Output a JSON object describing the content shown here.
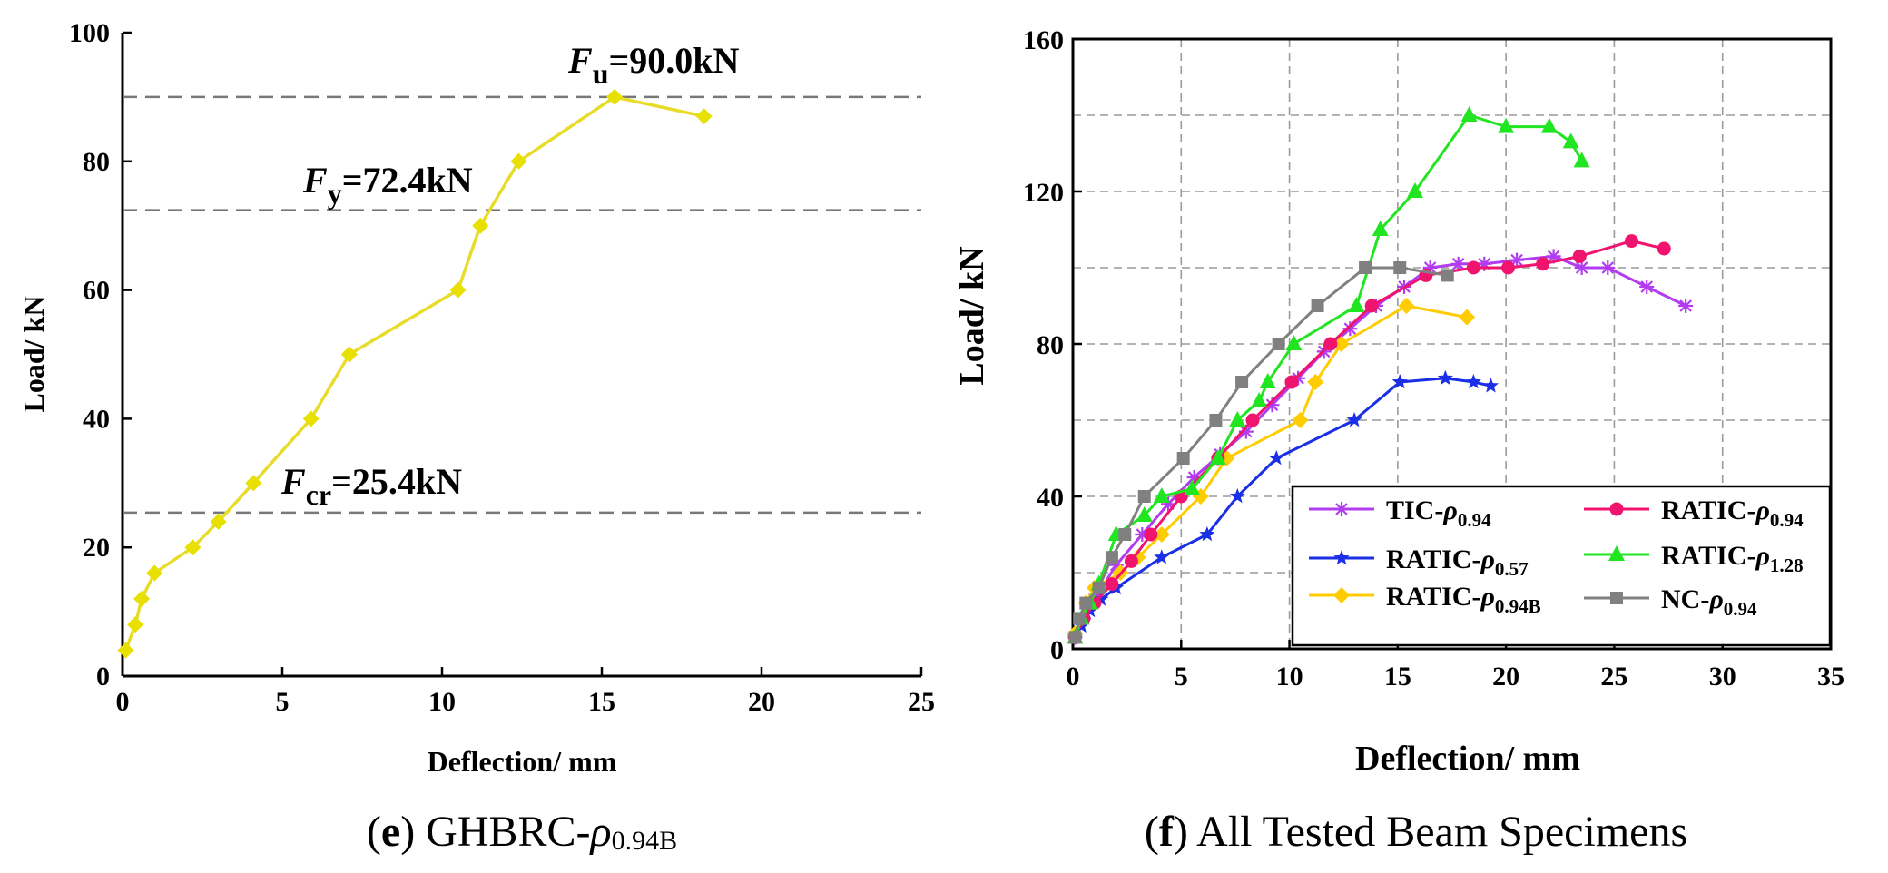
{
  "colors": {
    "tic": "#B13CF0",
    "r57": "#1A2FE6",
    "r94b": "#FFCC00",
    "r94": "#F0146E",
    "r128": "#22E522",
    "nc": "#808080",
    "e_line": "#E8DC2A",
    "e_marker": "#E8E000"
  },
  "chart_data": [
    {
      "type": "line",
      "caption": {
        "open": "(",
        "letter": "e",
        "close": ")",
        "name": "GHBRC-",
        "sym": "ρ",
        "sub": "0.94B"
      },
      "xlabel": "Deflection/ mm",
      "ylabel": "Load/ kN",
      "xlim": [
        0,
        25
      ],
      "ylim": [
        0,
        100
      ],
      "xticks": [
        "0",
        "5",
        "10",
        "15",
        "20",
        "25"
      ],
      "yticks": [
        "0",
        "20",
        "40",
        "60",
        "80",
        "100"
      ],
      "grid": false,
      "x": [
        0.1,
        0.4,
        0.6,
        1.0,
        2.2,
        3.0,
        4.1,
        5.9,
        7.1,
        10.5,
        11.2,
        12.4,
        15.4,
        18.2
      ],
      "y": [
        4,
        8,
        12,
        16,
        20,
        24,
        30,
        40,
        50,
        60,
        70,
        80,
        90,
        87
      ],
      "reference_lines": [
        {
          "value": 90.0,
          "sym": "F",
          "sub": "u",
          "text": "=90.0kN"
        },
        {
          "value": 72.4,
          "sym": "F",
          "sub": "y",
          "text": "=72.4kN"
        },
        {
          "value": 25.4,
          "sym": "F",
          "sub": "cr",
          "text": "=25.4kN"
        }
      ]
    },
    {
      "type": "line",
      "caption": {
        "open": "(",
        "letter": "f",
        "close": ")",
        "name": "All Tested Beam Specimens"
      },
      "xlabel": "Deflection/ mm",
      "ylabel": "Load/ kN",
      "xlim": [
        0,
        35
      ],
      "ylim": [
        0,
        160
      ],
      "xticks": [
        "0",
        "5",
        "10",
        "15",
        "20",
        "25",
        "30",
        "35"
      ],
      "yticks": [
        "0",
        "40",
        "80",
        "120",
        "160"
      ],
      "grid": true,
      "legend_position": "bottom-right",
      "series": [
        {
          "name": "TIC-",
          "sym": "ρ",
          "sub": "0.94",
          "marker": "asterisk",
          "color_key": "tic",
          "x": [
            0.1,
            0.5,
            1.0,
            2.0,
            3.2,
            4.4,
            5.6,
            6.8,
            8.0,
            9.2,
            10.4,
            11.6,
            12.8,
            14.0,
            15.3,
            16.5,
            17.8,
            19.0,
            20.5,
            22.2,
            23.5,
            24.7,
            26.5,
            28.3
          ],
          "y": [
            3,
            8,
            13,
            22,
            30,
            38,
            45,
            51,
            57,
            64,
            71,
            78,
            84,
            90,
            95,
            100,
            101,
            101,
            102,
            103,
            100,
            100,
            95,
            90
          ]
        },
        {
          "name": "RATIC-",
          "sym": "ρ",
          "sub": "0.57",
          "marker": "star",
          "color_key": "r57",
          "x": [
            0.1,
            0.4,
            0.8,
            1.3,
            2.0,
            4.1,
            6.2,
            7.6,
            9.4,
            13.0,
            15.1,
            17.2,
            18.5,
            19.3
          ],
          "y": [
            3,
            6,
            10,
            13,
            16,
            24,
            30,
            40,
            50,
            60,
            70,
            71,
            70,
            69
          ]
        },
        {
          "name": "RATIC-",
          "sym": "ρ",
          "sub": "0.94B",
          "marker": "diamond",
          "color_key": "r94b",
          "x": [
            0.1,
            0.4,
            0.6,
            1.0,
            2.2,
            3.0,
            4.1,
            5.9,
            7.1,
            10.5,
            11.2,
            12.4,
            15.4,
            18.2
          ],
          "y": [
            4,
            8,
            12,
            16,
            20,
            24,
            30,
            40,
            50,
            60,
            70,
            80,
            90,
            87
          ]
        },
        {
          "name": "RATIC-",
          "sym": "ρ",
          "sub": "0.94",
          "marker": "circle",
          "color_key": "r94",
          "x": [
            0.1,
            0.5,
            1.0,
            1.8,
            2.7,
            3.6,
            5.0,
            6.7,
            8.3,
            10.1,
            11.9,
            13.8,
            16.3,
            18.5,
            20.1,
            21.7,
            23.4,
            25.8,
            27.3
          ],
          "y": [
            3,
            8,
            12,
            17,
            23,
            30,
            40,
            50,
            60,
            70,
            80,
            90,
            98,
            100,
            100,
            101,
            103,
            107,
            105
          ]
        },
        {
          "name": "RATIC-",
          "sym": "ρ",
          "sub": "1.28",
          "marker": "triangle",
          "color_key": "r128",
          "x": [
            0.1,
            0.4,
            0.8,
            1.2,
            2.0,
            3.3,
            4.1,
            5.5,
            6.7,
            7.6,
            8.6,
            9.0,
            10.2,
            13.1,
            14.2,
            15.8,
            18.3,
            20.0,
            22.0,
            23.0,
            23.5
          ],
          "y": [
            3,
            8,
            12,
            17,
            30,
            35,
            40,
            42,
            50,
            60,
            65,
            70,
            80,
            90,
            110,
            120,
            140,
            137,
            137,
            133,
            128
          ]
        },
        {
          "name": "NC-",
          "sym": "ρ",
          "sub": "0.94",
          "marker": "square",
          "color_key": "nc",
          "x": [
            0.1,
            0.3,
            0.6,
            1.2,
            1.8,
            2.4,
            3.3,
            5.1,
            6.6,
            7.8,
            9.5,
            11.3,
            13.5,
            15.1,
            17.3
          ],
          "y": [
            3,
            8,
            12,
            16,
            24,
            30,
            40,
            50,
            60,
            70,
            80,
            90,
            100,
            100,
            98
          ]
        }
      ]
    }
  ]
}
